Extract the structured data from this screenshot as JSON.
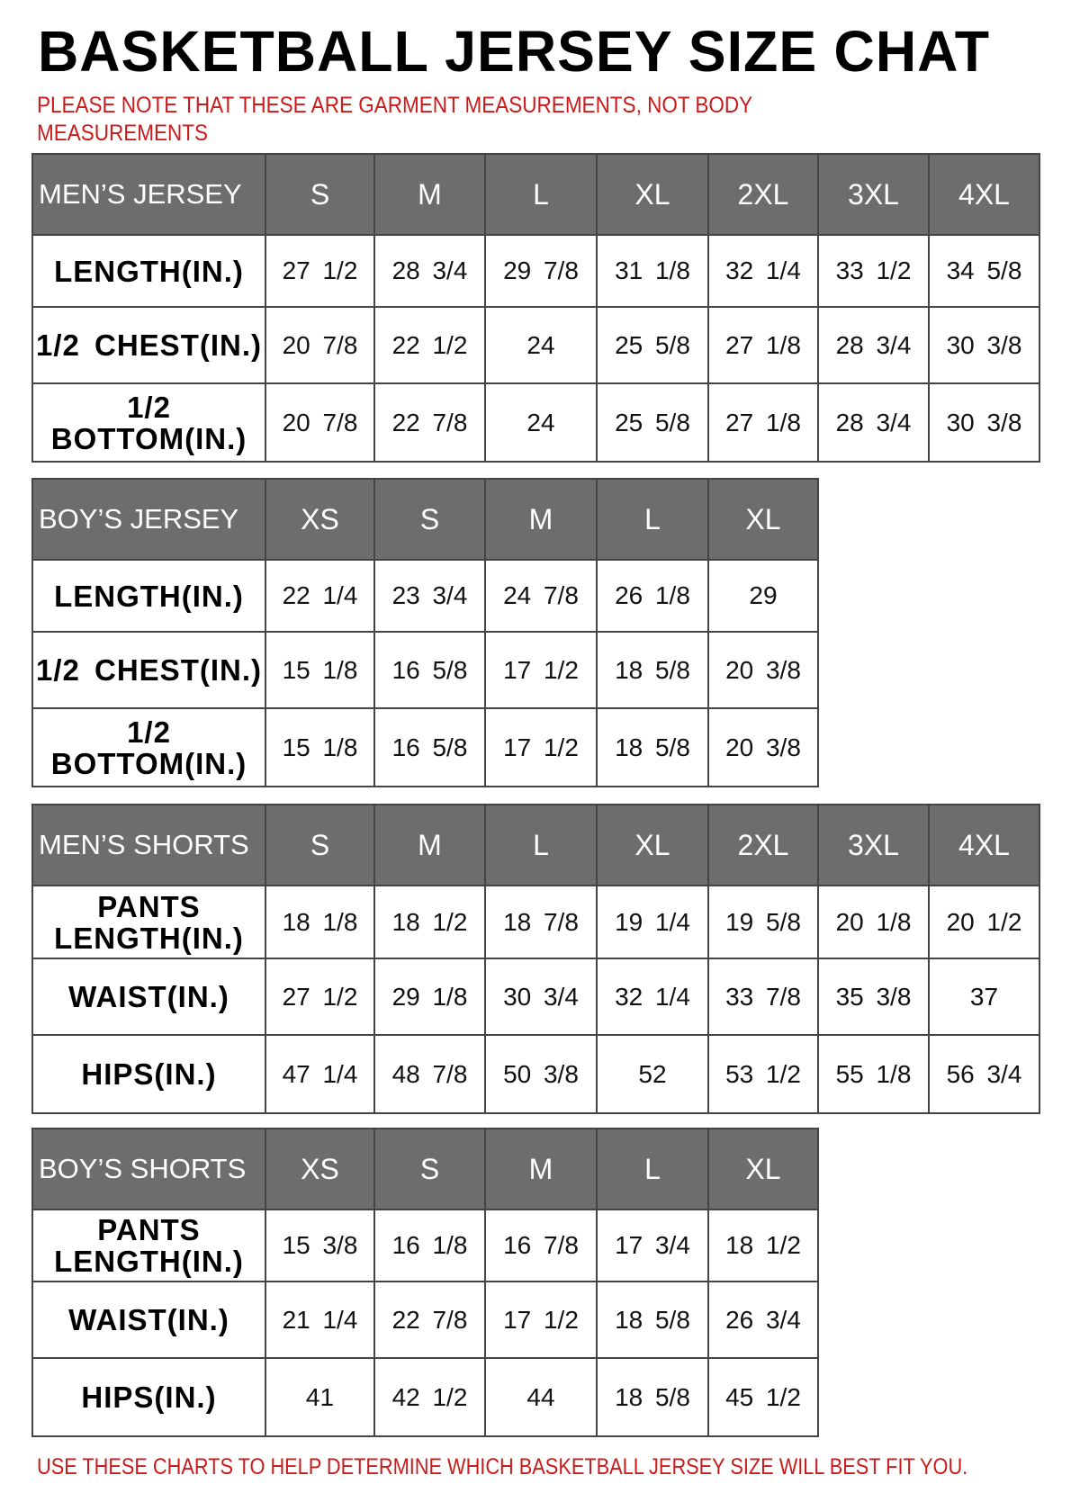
{
  "title": "BASKETBALL JERSEY SIZE CHAT",
  "note": "PLEASE NOTE THAT THESE ARE GARMENT MEASUREMENTS, NOT BODY MEASUREMENTS",
  "footer": "USE THESE CHARTS TO HELP DETERMINE WHICH BASKETBALL JERSEY SIZE WILL BEST FIT YOU.",
  "colors": {
    "header_bg": "#6d6d6d",
    "note_red": "#cc1a1a"
  },
  "tables": [
    {
      "header": "MEN’S JERSEY",
      "sizes": [
        "S",
        "M",
        "L",
        "XL",
        "2XL",
        "3XL",
        "4XL"
      ],
      "rows": [
        {
          "label": "LENGTH(IN.)",
          "values": [
            "27 1/2",
            "28 3/4",
            "29 7/8",
            "31 1/8",
            "32 1/4",
            "33 1/2",
            "34 5/8"
          ]
        },
        {
          "label": "1/2 CHEST(IN.)",
          "values": [
            "20 7/8",
            "22 1/2",
            "24",
            "25 5/8",
            "27 1/8",
            "28 3/4",
            "30 3/8"
          ]
        },
        {
          "label": "1/2 BOTTOM(IN.)",
          "values": [
            "20 7/8",
            "22 7/8",
            "24",
            "25 5/8",
            "27 1/8",
            "28 3/4",
            "30 3/8"
          ]
        }
      ]
    },
    {
      "header": "BOY’S JERSEY",
      "sizes": [
        "XS",
        "S",
        "M",
        "L",
        "XL"
      ],
      "rows": [
        {
          "label": "LENGTH(IN.)",
          "values": [
            "22 1/4",
            "23 3/4",
            "24 7/8",
            "26 1/8",
            "29"
          ]
        },
        {
          "label": "1/2 CHEST(IN.)",
          "values": [
            "15 1/8",
            "16 5/8",
            "17 1/2",
            "18 5/8",
            "20 3/8"
          ]
        },
        {
          "label": "1/2 BOTTOM(IN.)",
          "values": [
            "15 1/8",
            "16 5/8",
            "17 1/2",
            "18 5/8",
            "20 3/8"
          ]
        }
      ]
    },
    {
      "header": "MEN’S SHORTS",
      "sizes": [
        "S",
        "M",
        "L",
        "XL",
        "2XL",
        "3XL",
        "4XL"
      ],
      "rows": [
        {
          "label": "PANTS LENGTH(IN.)",
          "values": [
            "18 1/8",
            "18 1/2",
            "18 7/8",
            "19 1/4",
            "19 5/8",
            "20 1/8",
            "20 1/2"
          ]
        },
        {
          "label": "WAIST(IN.)",
          "values": [
            "27 1/2",
            "29 1/8",
            "30 3/4",
            "32 1/4",
            "33 7/8",
            "35 3/8",
            "37"
          ]
        },
        {
          "label": "HIPS(IN.)",
          "values": [
            "47 1/4",
            "48 7/8",
            "50 3/8",
            "52",
            "53 1/2",
            "55 1/8",
            "56 3/4"
          ]
        }
      ]
    },
    {
      "header": "BOY’S SHORTS",
      "sizes": [
        "XS",
        "S",
        "M",
        "L",
        "XL"
      ],
      "rows": [
        {
          "label": "PANTS LENGTH(IN.)",
          "values": [
            "15 3/8",
            "16 1/8",
            "16 7/8",
            "17 3/4",
            "18 1/2"
          ]
        },
        {
          "label": "WAIST(IN.)",
          "values": [
            "21 1/4",
            "22 7/8",
            "17 1/2",
            "18 5/8",
            "26 3/4"
          ]
        },
        {
          "label": "HIPS(IN.)",
          "values": [
            "41",
            "42 1/2",
            "44",
            "18 5/8",
            "45 1/2"
          ]
        }
      ]
    }
  ]
}
